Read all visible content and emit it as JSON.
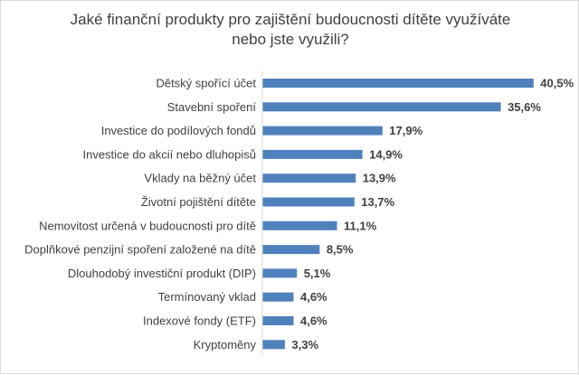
{
  "chart_data": {
    "type": "bar",
    "orientation": "horizontal",
    "title_lines": [
      "Jaké finanční produkty pro zajištění budoucnosti dítěte využíváte",
      "nebo jste využili?"
    ],
    "categories": [
      "Dětský spořící účet",
      "Stavební spoření",
      "Investice do podílových fondů",
      "Investice do akcií nebo dluhopisů",
      "Vklady na běžný účet",
      "Životní pojištění dítěte",
      "Nemovitost určená v budoucnosti pro dítě",
      "Doplňkové penzijní spoření založené na dítě",
      "Dlouhodobý investiční produkt (DIP)",
      "Termínovaný vklad",
      "Indexové fondy (ETF)",
      "Kryptoměny"
    ],
    "values": [
      40.5,
      35.6,
      17.9,
      14.9,
      13.9,
      13.7,
      11.1,
      8.5,
      5.1,
      4.6,
      4.6,
      3.3
    ],
    "value_labels": [
      "40,5%",
      "35,6%",
      "17,9%",
      "14,9%",
      "13,9%",
      "13,7%",
      "11,1%",
      "8,5%",
      "5,1%",
      "4,6%",
      "4,6%",
      "3,3%"
    ],
    "unit": "%",
    "bar_color": "#4f81bd",
    "grid": false,
    "legend": "none"
  }
}
